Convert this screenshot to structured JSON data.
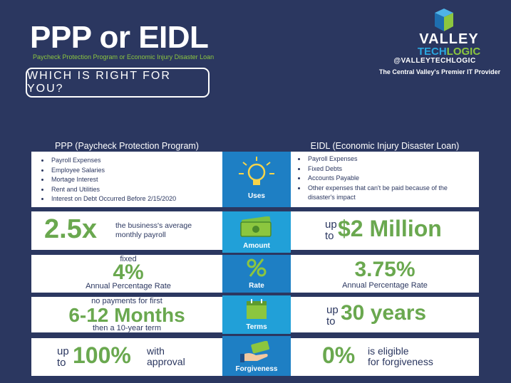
{
  "header": {
    "title": "PPP or EIDL",
    "subtitle": "Paycheck Protection Program or Economic Injury Disaster Loan",
    "question": "WHICH IS RIGHT FOR YOU?"
  },
  "brand": {
    "name_top": "VALLEY",
    "name_tech": "TECH",
    "name_logic": "LOGIC",
    "handle": "@VALLEYTECHLOGIC",
    "tagline": "The Central Valley's Premier IT Provider"
  },
  "columns": {
    "ppp": "PPP (Paycheck Protection Program)",
    "eidl": "EIDL (Economic Injury Disaster Loan)"
  },
  "uses": {
    "label": "Uses",
    "ppp": [
      "Payroll Expenses",
      "Employee Salaries",
      "Mortage Interest",
      "Rent and Utilities",
      "Interest on Debt Occurred Before 2/15/2020"
    ],
    "eidl": [
      "Payroll Expenses",
      "Fixed Debts",
      "Accounts Payable",
      "Other expenses that can't be paid because of the disaster's impact"
    ]
  },
  "amount": {
    "label": "Amount",
    "ppp_value": "2.5x",
    "ppp_text": "the business's average monthly payroll",
    "eidl_up": "up",
    "eidl_to": "to",
    "eidl_value": "$2 Million"
  },
  "rate": {
    "label": "Rate",
    "ppp_fixed": "fixed",
    "ppp_value": "4%",
    "ppp_text": "Annual Percentage Rate",
    "eidl_value": "3.75%",
    "eidl_text": "Annual Percentage Rate"
  },
  "terms": {
    "label": "Terms",
    "ppp_top": "no payments for first",
    "ppp_value": "6-12 Months",
    "ppp_bottom": "then a 10-year term",
    "eidl_up": "up",
    "eidl_to": "to",
    "eidl_value": "30 years"
  },
  "forgiveness": {
    "label": "Forgiveness",
    "ppp_up": "up",
    "ppp_to": "to",
    "ppp_value": "100%",
    "ppp_text1": "with",
    "ppp_text2": "approval",
    "eidl_value": "0%",
    "eidl_text1": "is eligible",
    "eidl_text2": "for forgiveness"
  },
  "colors": {
    "background": "#2b3760",
    "accent_green": "#6aa84f",
    "blue": "#1e7fc4",
    "light_blue": "#21a0d8"
  },
  "icons": [
    "lightbulb-icon",
    "money-icon",
    "percent-icon",
    "calendar-icon",
    "hand-money-icon"
  ]
}
